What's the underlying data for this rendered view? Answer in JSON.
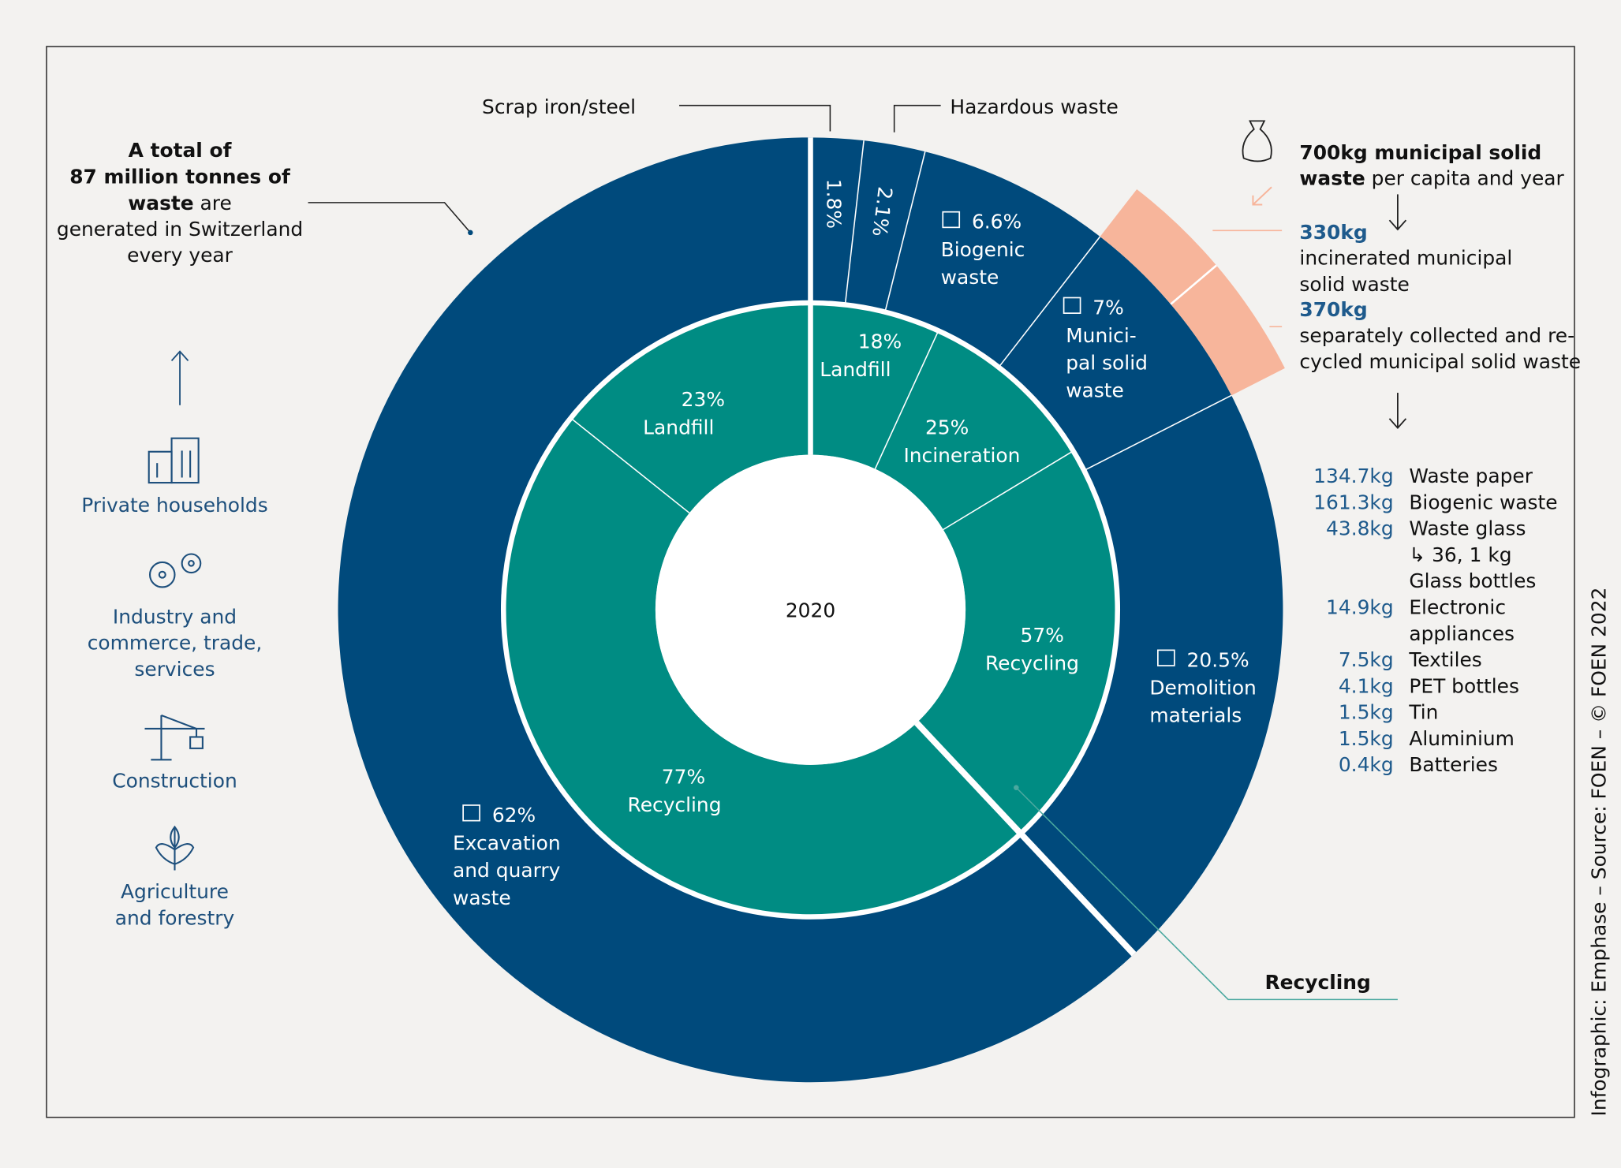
{
  "chart_data": {
    "type": "sunburst",
    "center_label": "2020",
    "total_text": {
      "bold": [
        "A total of",
        "87 million tonnes of",
        "waste"
      ],
      "regular": [
        "are",
        "generated in Switzerland",
        "every year"
      ]
    },
    "sources": [
      [
        "Private households"
      ],
      [
        "Industry and",
        "commerce, trade,",
        "services"
      ],
      [
        "Construction"
      ],
      [
        "Agriculture",
        "and forestry"
      ]
    ],
    "outer_ring": {
      "color": "#004a7c",
      "labels": [
        [
          "Scrap iron/steel"
        ],
        [
          "Hazardous waste"
        ],
        [
          "Biogenic",
          "waste"
        ],
        [
          "Munici-",
          "pal solid",
          "waste"
        ],
        [
          "Demolition",
          "materials"
        ],
        [
          "Excavation",
          "and quarry",
          "waste"
        ]
      ],
      "values": [
        1.8,
        2.1,
        6.6,
        7,
        20.5,
        62
      ],
      "value_labels": [
        "1.8%",
        "2.1%",
        "6.6%",
        "7%",
        "20.5%",
        "62%"
      ]
    },
    "inner_ring": {
      "color": "#008c83",
      "groups": [
        {
          "labels": [
            [
              "Landfill"
            ],
            [
              "Incineration"
            ],
            [
              "Recycling"
            ]
          ],
          "values": [
            18,
            25,
            57
          ],
          "value_labels": [
            "18%",
            "25%",
            "57%"
          ]
        },
        {
          "labels": [
            [
              "Recycling"
            ],
            [
              "Landfill"
            ]
          ],
          "values": [
            77,
            23
          ],
          "value_labels": [
            "77%",
            "23%"
          ]
        }
      ]
    },
    "municipal_waste": {
      "color": "#f7b59b",
      "total_bold": [
        "700kg municipal solid",
        "waste"
      ],
      "total_regular": "per capita and year",
      "parts": [
        {
          "value": 330,
          "value_label": "330kg",
          "label": [
            "incinerated municipal",
            "solid waste"
          ]
        },
        {
          "value": 370,
          "value_label": "370kg",
          "label": [
            "separately collected and re-",
            "cycled municipal solid waste"
          ]
        }
      ]
    },
    "breakdown": {
      "amounts": [
        "134.7kg",
        "161.3kg",
        "43.8kg",
        "14.9kg",
        "7.5kg",
        "4.1kg",
        "1.5kg",
        "1.5kg",
        "0.4kg"
      ],
      "labels": [
        [
          "Waste paper"
        ],
        [
          "Biogenic waste"
        ],
        [
          "Waste glass",
          "↳ 36, 1 kg",
          "Glass bottles"
        ],
        [
          "Electronic",
          "appliances"
        ],
        [
          "Textiles"
        ],
        [
          "PET bottles"
        ],
        [
          "Tin"
        ],
        [
          "Aluminium"
        ],
        [
          "Batteries"
        ]
      ]
    },
    "recycling_callout": "Recycling",
    "credit": "Infographic: Emphase –  Source: FOEN – © FOEN 2022"
  }
}
